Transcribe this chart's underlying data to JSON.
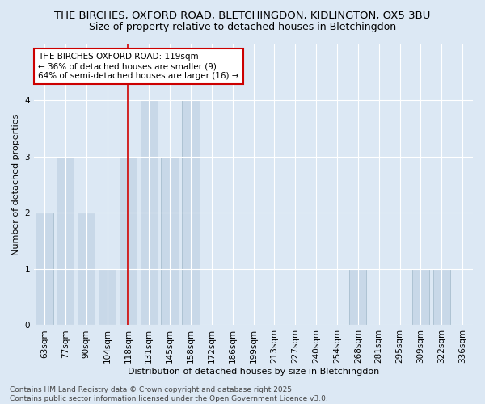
{
  "title": "THE BIRCHES, OXFORD ROAD, BLETCHINGDON, KIDLINGTON, OX5 3BU",
  "subtitle": "Size of property relative to detached houses in Bletchingdon",
  "xlabel": "Distribution of detached houses by size in Bletchingdon",
  "ylabel": "Number of detached properties",
  "categories": [
    "63sqm",
    "77sqm",
    "90sqm",
    "104sqm",
    "118sqm",
    "131sqm",
    "145sqm",
    "158sqm",
    "172sqm",
    "186sqm",
    "199sqm",
    "213sqm",
    "227sqm",
    "240sqm",
    "254sqm",
    "268sqm",
    "281sqm",
    "295sqm",
    "309sqm",
    "322sqm",
    "336sqm"
  ],
  "values": [
    2,
    3,
    2,
    1,
    3,
    4,
    3,
    4,
    0,
    0,
    0,
    0,
    0,
    0,
    0,
    1,
    0,
    0,
    1,
    1,
    0
  ],
  "bar_color": "#c8d8e8",
  "bar_edge_color": "#a8bece",
  "vline_x_index": 4,
  "vline_color": "#cc0000",
  "annotation_text": "THE BIRCHES OXFORD ROAD: 119sqm\n← 36% of detached houses are smaller (9)\n64% of semi-detached houses are larger (16) →",
  "annotation_box_color": "#ffffff",
  "annotation_box_edge": "#cc0000",
  "ylim": [
    0,
    5
  ],
  "yticks": [
    0,
    1,
    2,
    3,
    4,
    5
  ],
  "footer_line1": "Contains HM Land Registry data © Crown copyright and database right 2025.",
  "footer_line2": "Contains public sector information licensed under the Open Government Licence v3.0.",
  "bg_color": "#dce8f4",
  "plot_bg_color": "#dce8f4",
  "title_fontsize": 9.5,
  "subtitle_fontsize": 9,
  "axis_label_fontsize": 8,
  "tick_fontsize": 7.5,
  "footer_fontsize": 6.5,
  "annotation_fontsize": 7.5
}
